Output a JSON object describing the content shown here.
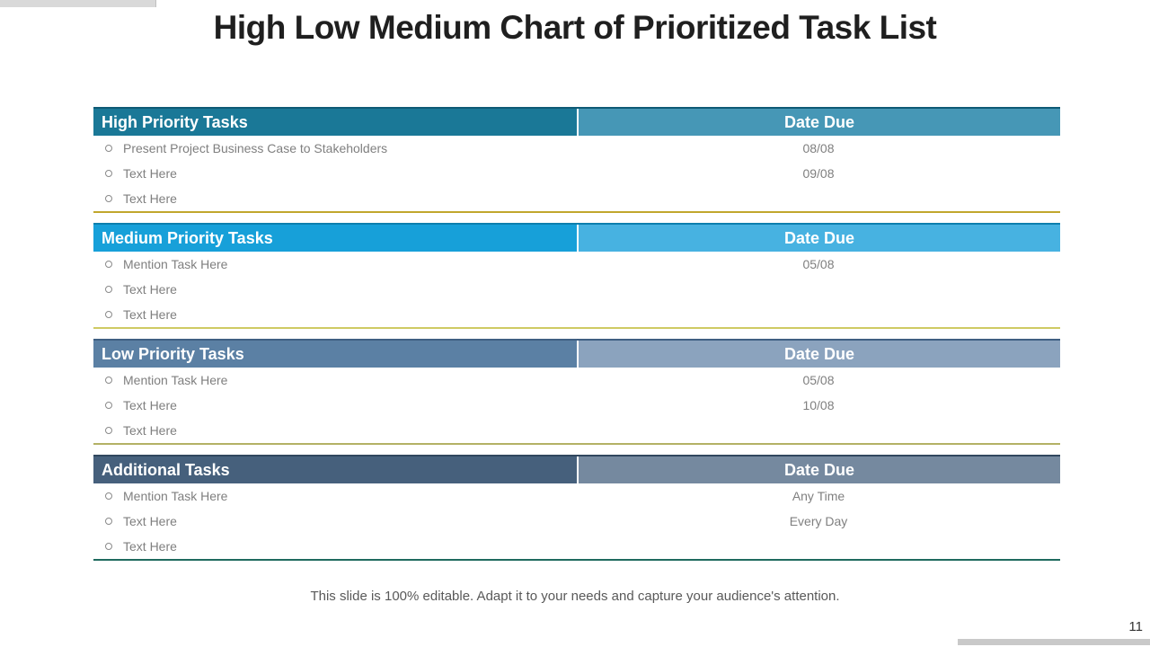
{
  "slide": {
    "title": "High Low Medium Chart of Prioritized Task List",
    "footer": "This slide is 100% editable. Adapt it to your needs and capture your audience's attention.",
    "page_number": "11"
  },
  "tables": [
    {
      "title": "High Priority Tasks",
      "date_header": "Date Due",
      "colors": {
        "top_border": "#0e5a75",
        "header_left": "#1a7897",
        "header_right": "#4697b6",
        "bottom_line": "#c1a62c"
      },
      "rows": [
        {
          "task": "Present Project Business Case to Stakeholders",
          "date": "08/08"
        },
        {
          "task": "Text Here",
          "date": "09/08"
        },
        {
          "task": "Text Here",
          "date": ""
        }
      ]
    },
    {
      "title": "Medium Priority Tasks",
      "date_header": "Date Due",
      "colors": {
        "top_border": "#0d7fae",
        "header_left": "#17a0d9",
        "header_right": "#47b2e1",
        "bottom_line": "#cfca63"
      },
      "rows": [
        {
          "task": "Mention Task Here",
          "date": "05/08"
        },
        {
          "task": "Text Here",
          "date": ""
        },
        {
          "task": "Text Here",
          "date": ""
        }
      ]
    },
    {
      "title": "Low Priority Tasks",
      "date_header": "Date Due",
      "colors": {
        "top_border": "#3f5f82",
        "header_left": "#5b80a4",
        "header_right": "#8ba3be",
        "bottom_line": "#b3b165"
      },
      "rows": [
        {
          "task": "Mention Task Here",
          "date": "05/08"
        },
        {
          "task": "Text Here",
          "date": "10/08"
        },
        {
          "task": "Text Here",
          "date": ""
        }
      ]
    },
    {
      "title": "Additional Tasks",
      "date_header": "Date Due",
      "colors": {
        "top_border": "#30475e",
        "header_left": "#46607c",
        "header_right": "#75899f",
        "bottom_line": "#1f6a5e"
      },
      "rows": [
        {
          "task": "Mention Task Here",
          "date": "Any Time"
        },
        {
          "task": "Text Here",
          "date": "Every Day"
        },
        {
          "task": "Text Here",
          "date": ""
        }
      ]
    }
  ]
}
